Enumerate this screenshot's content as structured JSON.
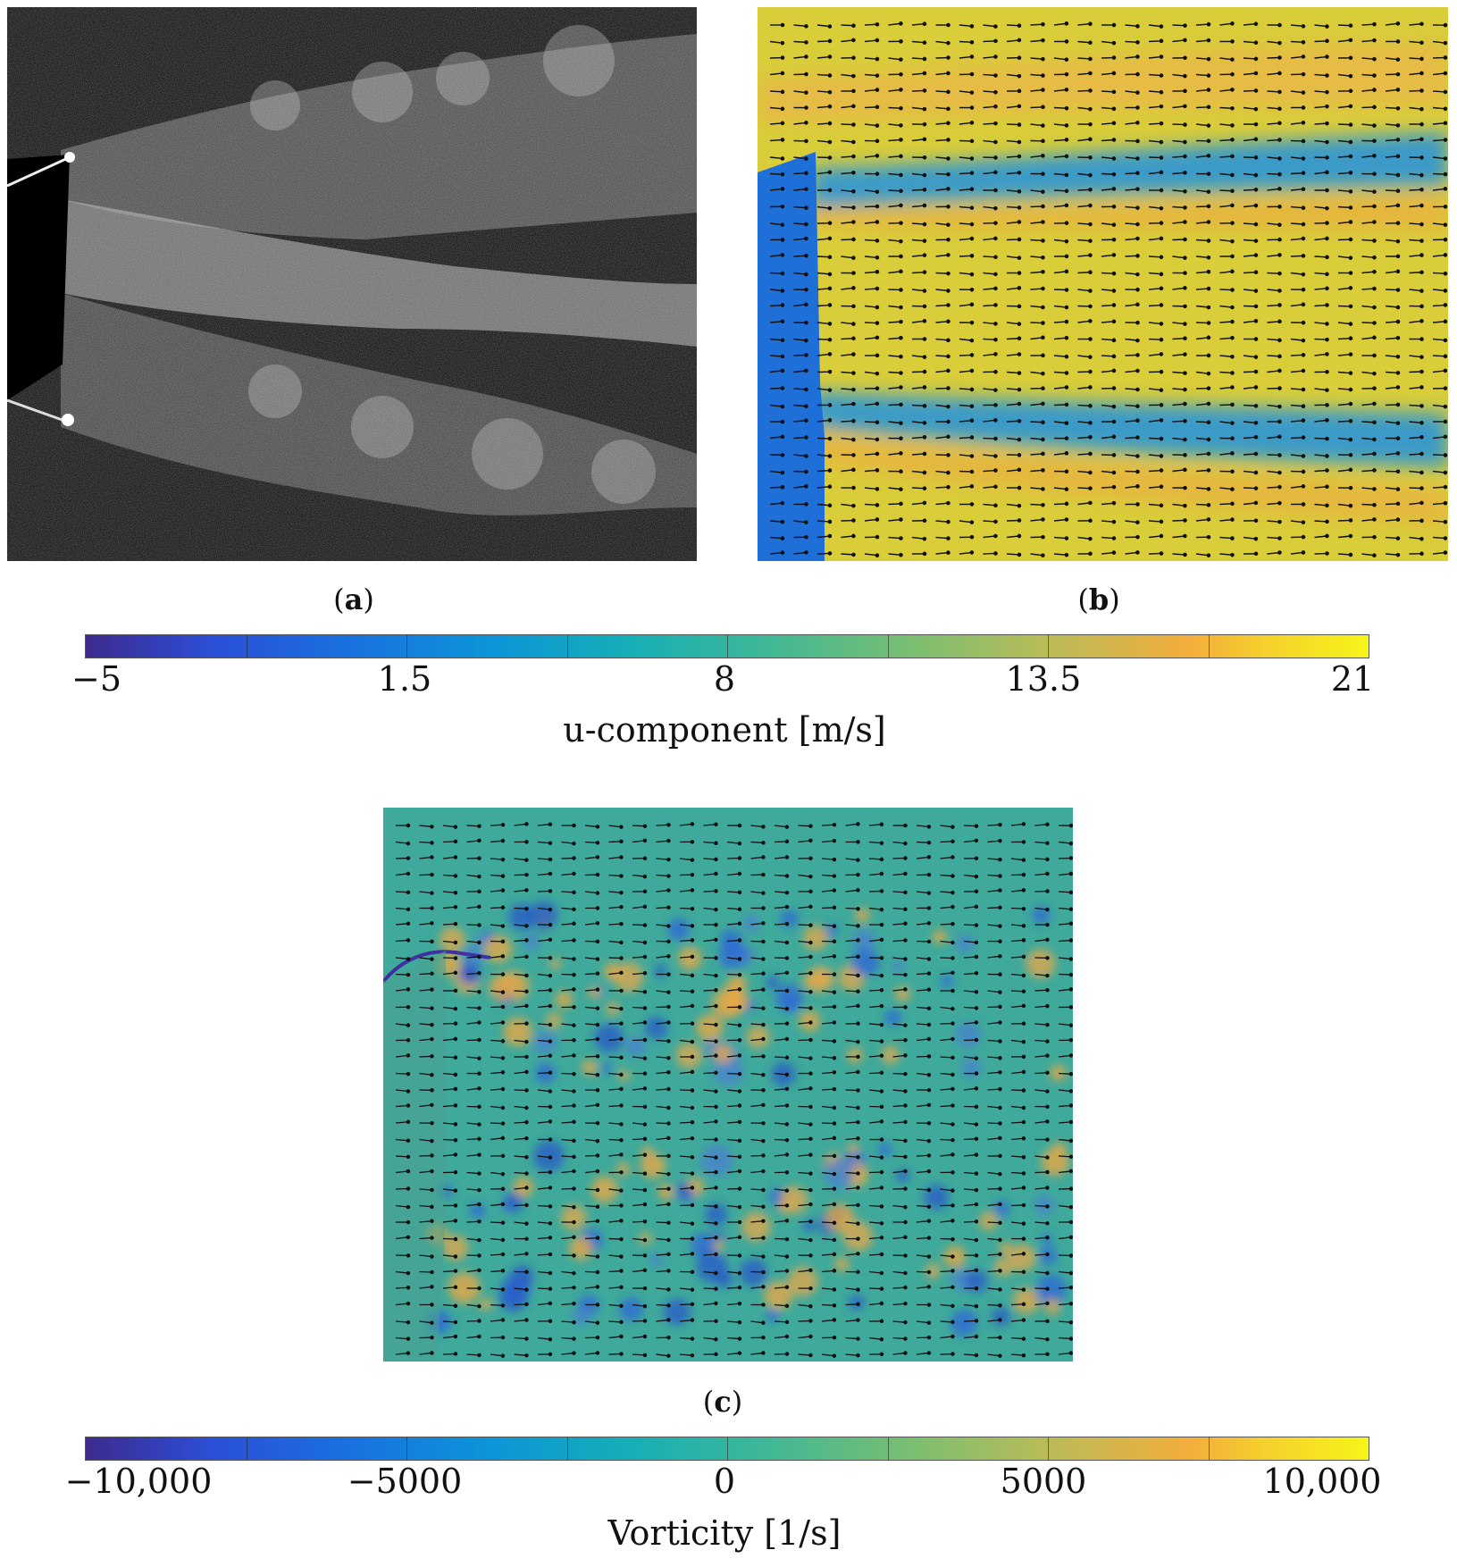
{
  "figure": {
    "panels": [
      {
        "id": "a",
        "caption_letter": "a"
      },
      {
        "id": "b",
        "caption_letter": "b"
      },
      {
        "id": "c",
        "caption_letter": "c"
      }
    ]
  },
  "colorbar_u": {
    "label": "u-component [m/s]",
    "ticks": [
      "−5",
      "1.5",
      "8",
      "13.5",
      "21"
    ],
    "tick_values": [
      -5,
      1.5,
      8,
      13.5,
      21
    ],
    "range": [
      -5,
      21
    ],
    "colors": [
      "#3e2a8f",
      "#1a6fe0",
      "#14aeb8",
      "#78be72",
      "#f3ad3c",
      "#f6f518"
    ]
  },
  "colorbar_vorticity": {
    "label": "Vorticity [1/s]",
    "ticks": [
      "−10,000",
      "−5000",
      "0",
      "5000",
      "10,000"
    ],
    "tick_values": [
      -10000,
      -5000,
      0,
      5000,
      10000
    ],
    "range": [
      -11000,
      11000
    ]
  }
}
